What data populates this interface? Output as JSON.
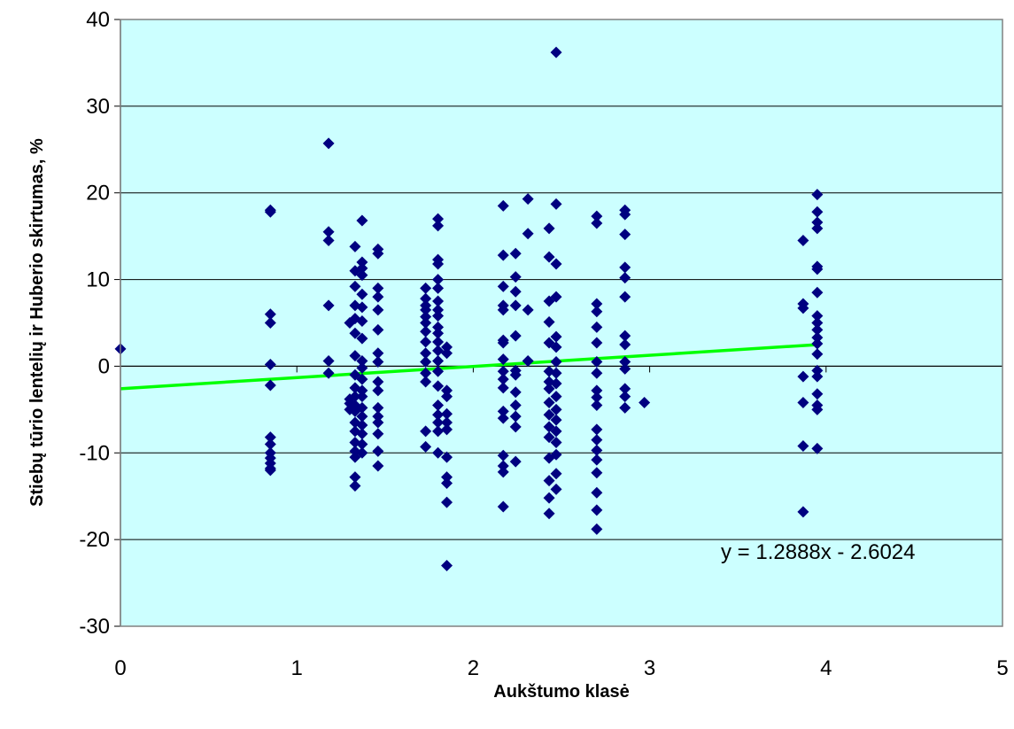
{
  "chart_data": {
    "type": "scatter",
    "title": "",
    "xlabel": "Aukštumo klasė",
    "ylabel": "Stiebų tūrio lentelių ir Huberio skirtumas, %",
    "xlim": [
      0,
      5
    ],
    "ylim": [
      -30,
      40
    ],
    "x_ticks": [
      0,
      1,
      2,
      3,
      4,
      5
    ],
    "y_ticks": [
      -30,
      -20,
      -10,
      0,
      10,
      20,
      30,
      40
    ],
    "grid": "horizontal",
    "legend": "none",
    "colors": {
      "plot_background": "#ccffff",
      "marker": "#000080",
      "trendline": "#00ff00",
      "gridline": "#000000"
    },
    "series": [
      {
        "marker": "diamond",
        "points": [
          [
            0.0,
            2.0
          ],
          [
            0.85,
            17.8
          ],
          [
            0.85,
            18.0
          ],
          [
            0.85,
            6.0
          ],
          [
            0.85,
            5.0
          ],
          [
            0.85,
            0.2
          ],
          [
            0.85,
            -2.2
          ],
          [
            0.85,
            -8.2
          ],
          [
            0.85,
            -9.0
          ],
          [
            0.85,
            -10.0
          ],
          [
            0.85,
            -10.6
          ],
          [
            0.85,
            -11.2
          ],
          [
            0.85,
            -11.8
          ],
          [
            0.85,
            -12.0
          ],
          [
            1.18,
            25.7
          ],
          [
            1.18,
            15.5
          ],
          [
            1.18,
            14.5
          ],
          [
            1.18,
            7.0
          ],
          [
            1.18,
            0.6
          ],
          [
            1.18,
            -0.8
          ],
          [
            1.3,
            5.0
          ],
          [
            1.3,
            -3.8
          ],
          [
            1.3,
            -4.3
          ],
          [
            1.3,
            -5.0
          ],
          [
            1.33,
            13.8
          ],
          [
            1.33,
            11.0
          ],
          [
            1.33,
            9.2
          ],
          [
            1.33,
            7.0
          ],
          [
            1.33,
            5.5
          ],
          [
            1.33,
            3.8
          ],
          [
            1.33,
            1.2
          ],
          [
            1.33,
            -1.0
          ],
          [
            1.33,
            -2.5
          ],
          [
            1.33,
            -3.5
          ],
          [
            1.33,
            -4.5
          ],
          [
            1.33,
            -5.2
          ],
          [
            1.33,
            -6.5
          ],
          [
            1.33,
            -7.5
          ],
          [
            1.33,
            -8.8
          ],
          [
            1.33,
            -9.8
          ],
          [
            1.33,
            -10.5
          ],
          [
            1.33,
            -12.8
          ],
          [
            1.33,
            -13.8
          ],
          [
            1.37,
            16.8
          ],
          [
            1.37,
            12.0
          ],
          [
            1.37,
            11.3
          ],
          [
            1.37,
            10.5
          ],
          [
            1.37,
            8.3
          ],
          [
            1.37,
            6.8
          ],
          [
            1.37,
            5.2
          ],
          [
            1.37,
            3.2
          ],
          [
            1.37,
            0.6
          ],
          [
            1.37,
            -0.2
          ],
          [
            1.37,
            -1.5
          ],
          [
            1.37,
            -2.8
          ],
          [
            1.37,
            -3.5
          ],
          [
            1.37,
            -4.8
          ],
          [
            1.37,
            -5.8
          ],
          [
            1.37,
            -6.8
          ],
          [
            1.37,
            -7.8
          ],
          [
            1.37,
            -9.0
          ],
          [
            1.37,
            -10.0
          ],
          [
            1.46,
            13.5
          ],
          [
            1.46,
            13.0
          ],
          [
            1.46,
            9.0
          ],
          [
            1.46,
            8.0
          ],
          [
            1.46,
            6.5
          ],
          [
            1.46,
            4.2
          ],
          [
            1.46,
            1.5
          ],
          [
            1.46,
            0.5
          ],
          [
            1.46,
            -1.8
          ],
          [
            1.46,
            -2.8
          ],
          [
            1.46,
            -4.8
          ],
          [
            1.46,
            -5.8
          ],
          [
            1.46,
            -6.5
          ],
          [
            1.46,
            -7.8
          ],
          [
            1.46,
            -9.8
          ],
          [
            1.46,
            -11.5
          ],
          [
            1.73,
            9.0
          ],
          [
            1.73,
            7.8
          ],
          [
            1.73,
            7.0
          ],
          [
            1.73,
            6.5
          ],
          [
            1.73,
            5.7
          ],
          [
            1.73,
            5.0
          ],
          [
            1.73,
            4.0
          ],
          [
            1.73,
            2.8
          ],
          [
            1.73,
            1.5
          ],
          [
            1.73,
            0.5
          ],
          [
            1.73,
            -0.8
          ],
          [
            1.73,
            -1.8
          ],
          [
            1.73,
            -7.5
          ],
          [
            1.73,
            -9.3
          ],
          [
            1.8,
            17.0
          ],
          [
            1.8,
            16.2
          ],
          [
            1.8,
            12.3
          ],
          [
            1.8,
            11.8
          ],
          [
            1.8,
            10.0
          ],
          [
            1.8,
            9.0
          ],
          [
            1.8,
            7.5
          ],
          [
            1.8,
            6.5
          ],
          [
            1.8,
            5.8
          ],
          [
            1.8,
            4.5
          ],
          [
            1.8,
            3.8
          ],
          [
            1.8,
            2.8
          ],
          [
            1.8,
            1.8
          ],
          [
            1.8,
            0.6
          ],
          [
            1.8,
            -0.6
          ],
          [
            1.8,
            -2.3
          ],
          [
            1.8,
            -4.5
          ],
          [
            1.8,
            -5.6
          ],
          [
            1.8,
            -6.5
          ],
          [
            1.8,
            -7.5
          ],
          [
            1.8,
            -10.0
          ],
          [
            1.85,
            2.2
          ],
          [
            1.85,
            1.5
          ],
          [
            1.85,
            -2.8
          ],
          [
            1.85,
            -3.5
          ],
          [
            1.85,
            -5.5
          ],
          [
            1.85,
            -6.5
          ],
          [
            1.85,
            -7.3
          ],
          [
            1.85,
            -10.5
          ],
          [
            1.85,
            -12.8
          ],
          [
            1.85,
            -13.5
          ],
          [
            1.85,
            -15.7
          ],
          [
            1.85,
            -23.0
          ],
          [
            2.17,
            18.5
          ],
          [
            2.17,
            12.8
          ],
          [
            2.17,
            9.2
          ],
          [
            2.17,
            7.0
          ],
          [
            2.17,
            6.5
          ],
          [
            2.17,
            3.0
          ],
          [
            2.17,
            2.7
          ],
          [
            2.17,
            0.8
          ],
          [
            2.17,
            -0.6
          ],
          [
            2.17,
            -1.5
          ],
          [
            2.17,
            -2.5
          ],
          [
            2.17,
            -5.2
          ],
          [
            2.17,
            -6.0
          ],
          [
            2.17,
            -10.3
          ],
          [
            2.17,
            -11.5
          ],
          [
            2.17,
            -12.2
          ],
          [
            2.17,
            -16.2
          ],
          [
            2.24,
            13.0
          ],
          [
            2.24,
            10.3
          ],
          [
            2.24,
            8.6
          ],
          [
            2.24,
            7.0
          ],
          [
            2.24,
            3.5
          ],
          [
            2.24,
            -0.5
          ],
          [
            2.24,
            -1.0
          ],
          [
            2.24,
            -3.0
          ],
          [
            2.24,
            -4.5
          ],
          [
            2.24,
            -5.8
          ],
          [
            2.24,
            -7.0
          ],
          [
            2.24,
            -11.0
          ],
          [
            2.31,
            19.3
          ],
          [
            2.31,
            15.3
          ],
          [
            2.31,
            6.5
          ],
          [
            2.31,
            0.6
          ],
          [
            2.43,
            15.9
          ],
          [
            2.43,
            12.6
          ],
          [
            2.43,
            7.5
          ],
          [
            2.43,
            5.1
          ],
          [
            2.43,
            2.7
          ],
          [
            2.43,
            -0.6
          ],
          [
            2.43,
            -1.8
          ],
          [
            2.43,
            -2.6
          ],
          [
            2.43,
            -4.2
          ],
          [
            2.43,
            -5.6
          ],
          [
            2.43,
            -7.0
          ],
          [
            2.43,
            -8.2
          ],
          [
            2.43,
            -10.6
          ],
          [
            2.43,
            -13.2
          ],
          [
            2.43,
            -15.2
          ],
          [
            2.43,
            -17.0
          ],
          [
            2.47,
            36.2
          ],
          [
            2.47,
            18.7
          ],
          [
            2.47,
            11.8
          ],
          [
            2.47,
            8.0
          ],
          [
            2.47,
            3.4
          ],
          [
            2.47,
            2.2
          ],
          [
            2.47,
            0.5
          ],
          [
            2.47,
            -0.8
          ],
          [
            2.47,
            -2.0
          ],
          [
            2.47,
            -3.5
          ],
          [
            2.47,
            -5.0
          ],
          [
            2.47,
            -6.2
          ],
          [
            2.47,
            -7.5
          ],
          [
            2.47,
            -8.8
          ],
          [
            2.47,
            -10.2
          ],
          [
            2.47,
            -12.4
          ],
          [
            2.47,
            -14.2
          ],
          [
            2.7,
            17.3
          ],
          [
            2.7,
            16.5
          ],
          [
            2.7,
            7.2
          ],
          [
            2.7,
            6.3
          ],
          [
            2.7,
            4.5
          ],
          [
            2.7,
            2.7
          ],
          [
            2.7,
            0.5
          ],
          [
            2.7,
            -0.8
          ],
          [
            2.7,
            -2.8
          ],
          [
            2.7,
            -3.6
          ],
          [
            2.7,
            -4.5
          ],
          [
            2.7,
            -7.3
          ],
          [
            2.7,
            -8.5
          ],
          [
            2.7,
            -9.7
          ],
          [
            2.7,
            -10.8
          ],
          [
            2.7,
            -12.3
          ],
          [
            2.7,
            -14.6
          ],
          [
            2.7,
            -16.6
          ],
          [
            2.7,
            -18.8
          ],
          [
            2.86,
            18.0
          ],
          [
            2.86,
            17.5
          ],
          [
            2.86,
            15.2
          ],
          [
            2.86,
            11.4
          ],
          [
            2.86,
            10.2
          ],
          [
            2.86,
            8.0
          ],
          [
            2.86,
            3.5
          ],
          [
            2.86,
            2.5
          ],
          [
            2.86,
            0.5
          ],
          [
            2.86,
            -0.3
          ],
          [
            2.86,
            -2.6
          ],
          [
            2.86,
            -3.5
          ],
          [
            2.86,
            -4.8
          ],
          [
            2.97,
            -4.2
          ],
          [
            3.87,
            14.5
          ],
          [
            3.87,
            7.2
          ],
          [
            3.87,
            6.7
          ],
          [
            3.87,
            -1.2
          ],
          [
            3.87,
            -4.2
          ],
          [
            3.87,
            -9.2
          ],
          [
            3.87,
            -16.8
          ],
          [
            3.95,
            19.8
          ],
          [
            3.95,
            17.8
          ],
          [
            3.95,
            16.6
          ],
          [
            3.95,
            15.9
          ],
          [
            3.95,
            11.5
          ],
          [
            3.95,
            11.2
          ],
          [
            3.95,
            8.5
          ],
          [
            3.95,
            5.8
          ],
          [
            3.95,
            5.0
          ],
          [
            3.95,
            4.2
          ],
          [
            3.95,
            3.3
          ],
          [
            3.95,
            2.6
          ],
          [
            3.95,
            1.4
          ],
          [
            3.95,
            -0.5
          ],
          [
            3.95,
            -1.2
          ],
          [
            3.95,
            -3.2
          ],
          [
            3.95,
            -4.5
          ],
          [
            3.95,
            -5.0
          ],
          [
            3.95,
            -9.5
          ]
        ]
      }
    ],
    "trendline": {
      "type": "linear",
      "slope": 1.2888,
      "intercept": -2.6024,
      "x_range": [
        0,
        3.95
      ],
      "equation_label": "y = 1.2888x - 2.6024"
    }
  }
}
